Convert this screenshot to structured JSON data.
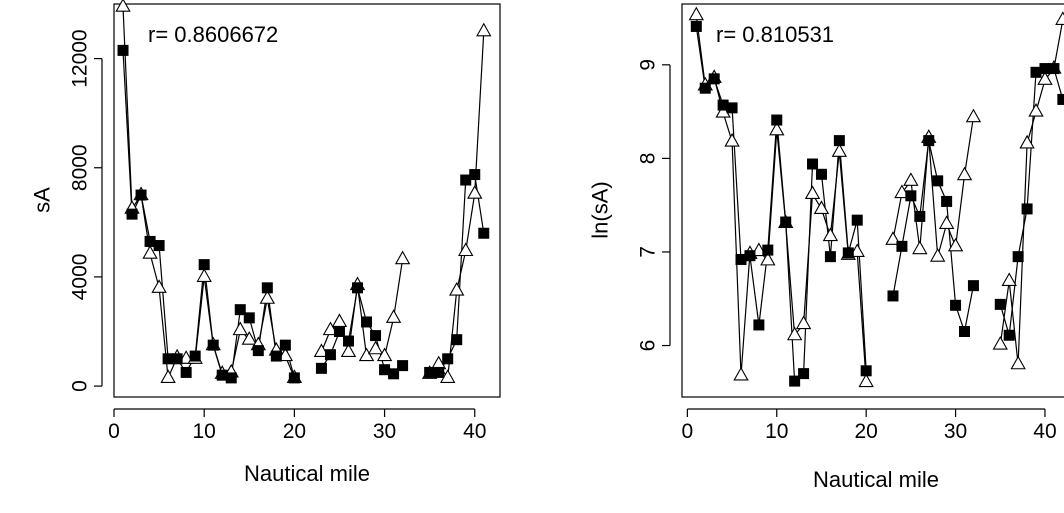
{
  "chart_data": [
    {
      "type": "line",
      "annotation": "r= 0.8606672",
      "xlabel": "Nautical mile",
      "ylabel": "sA",
      "xlim": [
        0,
        42.8
      ],
      "ylim": [
        -400,
        14000
      ],
      "x_ticks": [
        0,
        10,
        20,
        30,
        40
      ],
      "y_ticks": [
        0,
        4000,
        8000,
        12000
      ],
      "grid": false,
      "series": [
        {
          "marker": "filled-square",
          "segments": [
            {
              "x": [
                1,
                2,
                3,
                4,
                5,
                6,
                7,
                8,
                9,
                10,
                11,
                12,
                13,
                14,
                15,
                16,
                17,
                18,
                19,
                20
              ],
              "y": [
                12300,
                6300,
                7000,
                5300,
                5150,
                1000,
                1000,
                500,
                1100,
                4450,
                1500,
                400,
                300,
                2800,
                2500,
                1300,
                3600,
                1100,
                1500,
                300
              ]
            },
            {
              "x": [
                23,
                24,
                25,
                26,
                27,
                28,
                29,
                30,
                31,
                32
              ],
              "y": [
                650,
                1150,
                2000,
                1650,
                3600,
                2350,
                1850,
                600,
                450,
                750
              ]
            },
            {
              "x": [
                35,
                36,
                37,
                38,
                39,
                40,
                41
              ],
              "y": [
                500,
                500,
                1000,
                1700,
                7550,
                7750,
                5600
              ]
            }
          ]
        },
        {
          "marker": "open-triangle",
          "segments": [
            {
              "x": [
                1,
                2,
                3,
                4,
                5,
                6,
                7,
                8,
                9,
                10,
                11,
                12,
                13,
                14,
                15,
                16,
                17,
                18,
                19,
                20
              ],
              "y": [
                13900,
                6500,
                7000,
                4850,
                3600,
                300,
                1050,
                1000,
                1000,
                4000,
                1500,
                450,
                500,
                2050,
                1700,
                1500,
                3200,
                1300,
                1100,
                300
              ]
            },
            {
              "x": [
                23,
                24,
                25,
                26,
                27,
                28,
                29,
                30,
                31,
                32
              ],
              "y": [
                1250,
                2050,
                2350,
                1250,
                3700,
                1100,
                1350,
                1100,
                2500,
                4650
              ]
            },
            {
              "x": [
                35,
                36,
                37,
                38,
                39,
                40,
                41
              ],
              "y": [
                450,
                800,
                300,
                3500,
                4950,
                7050,
                13000
              ]
            }
          ]
        }
      ]
    },
    {
      "type": "line",
      "annotation": "r= 0.810531",
      "xlabel": "Nautical mile",
      "ylabel": "ln(sA)",
      "xlim": [
        -0.6,
        42.8
      ],
      "ylim": [
        5.45,
        9.65
      ],
      "x_ticks": [
        0,
        10,
        20,
        30,
        40
      ],
      "y_ticks": [
        6,
        7,
        8,
        9
      ],
      "grid": false,
      "series": [
        {
          "marker": "filled-square",
          "segments": [
            {
              "x": [
                1,
                2,
                3,
                4,
                5,
                6,
                7,
                8,
                9,
                10,
                11,
                12,
                13,
                14,
                15,
                16,
                17,
                18,
                19,
                20
              ],
              "y": [
                9.41,
                8.75,
                8.85,
                8.57,
                8.54,
                6.92,
                6.96,
                6.22,
                7.02,
                8.41,
                7.32,
                5.62,
                5.7,
                7.94,
                7.83,
                6.95,
                8.19,
                6.99,
                7.34,
                5.73
              ]
            },
            {
              "x": [
                23,
                24,
                25,
                26,
                27,
                28,
                29,
                30,
                31,
                32
              ],
              "y": [
                6.53,
                7.06,
                7.6,
                7.38,
                8.19,
                7.76,
                7.54,
                6.43,
                6.15,
                6.64
              ]
            },
            {
              "x": [
                35,
                36,
                37,
                38,
                39,
                40,
                41,
                42
              ],
              "y": [
                6.44,
                6.11,
                6.95,
                7.46,
                8.92,
                8.96,
                8.96,
                8.63
              ]
            }
          ]
        },
        {
          "marker": "open-triangle",
          "segments": [
            {
              "x": [
                1,
                2,
                3,
                4,
                5,
                6,
                7,
                8,
                9,
                10,
                11,
                12,
                13,
                14,
                15,
                16,
                17,
                18,
                19,
                20
              ],
              "y": [
                9.53,
                8.78,
                8.86,
                8.49,
                8.18,
                5.68,
                6.98,
                7.01,
                6.91,
                8.3,
                7.31,
                6.11,
                6.23,
                7.62,
                7.46,
                7.17,
                8.07,
                6.97,
                7.0,
                5.61
              ]
            },
            {
              "x": [
                23,
                24,
                25,
                26,
                27,
                28,
                29,
                30,
                31,
                32
              ],
              "y": [
                7.13,
                7.63,
                7.76,
                7.03,
                8.22,
                6.95,
                7.3,
                7.06,
                7.82,
                8.44
              ]
            },
            {
              "x": [
                35,
                36,
                37,
                38,
                39,
                40,
                41,
                42
              ],
              "y": [
                6.01,
                6.69,
                5.8,
                8.16,
                8.5,
                8.84,
                8.96,
                9.48
              ]
            }
          ]
        }
      ]
    }
  ]
}
